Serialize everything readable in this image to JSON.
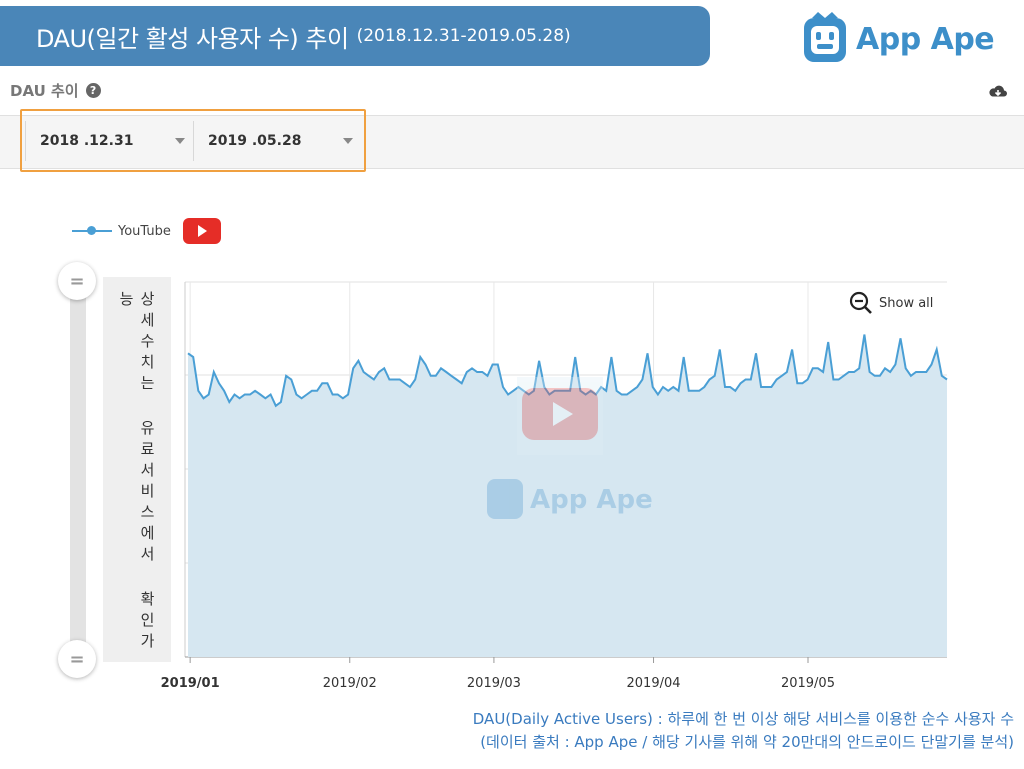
{
  "header": {
    "title": "DAU(일간 활성 사용자 수) 추이",
    "range": "(2018.12.31-2019.05.28)",
    "logo_text": "App Ape"
  },
  "section": {
    "title": "DAU 추이"
  },
  "date_range": {
    "start": "2018 .12.31",
    "end": "2019 .05.28"
  },
  "legend": {
    "series_name": "YouTube"
  },
  "side_panel": {
    "text": "상세수치는 유료서비스에서 확인가능"
  },
  "controls": {
    "show_all": "Show all"
  },
  "watermark": {
    "text": "App Ape"
  },
  "footnote": {
    "line1": "DAU(Daily Active Users) : 하루에 한 번 이상 해당 서비스를 이용한 순수 사용자 수",
    "line2": "(데이터 출처 : App Ape / 해당 기사를 위해 약 20만대의 안드로이드 단말기를 분석)"
  },
  "colors": {
    "banner": "#4a86b8",
    "line": "#4a9fd5",
    "area": "#d6e7f1",
    "highlight": "#f0a040",
    "youtube": "#e52d27"
  },
  "chart_data": {
    "type": "area",
    "x_ticks": [
      "2019/01",
      "2019/02",
      "2019/03",
      "2019/04",
      "2019/05"
    ],
    "x_start": "2018-12-31",
    "x_end": "2019-05-28",
    "y_values_hidden": true,
    "grid": true,
    "legend_position": "top-left",
    "series": [
      {
        "name": "YouTube",
        "values": [
          0.81,
          0.8,
          0.71,
          0.69,
          0.7,
          0.76,
          0.73,
          0.71,
          0.68,
          0.7,
          0.69,
          0.7,
          0.7,
          0.71,
          0.7,
          0.69,
          0.7,
          0.67,
          0.68,
          0.75,
          0.74,
          0.7,
          0.69,
          0.7,
          0.71,
          0.71,
          0.73,
          0.73,
          0.7,
          0.7,
          0.69,
          0.7,
          0.77,
          0.79,
          0.76,
          0.75,
          0.74,
          0.76,
          0.77,
          0.74,
          0.74,
          0.74,
          0.73,
          0.72,
          0.74,
          0.8,
          0.78,
          0.75,
          0.75,
          0.77,
          0.76,
          0.75,
          0.74,
          0.73,
          0.76,
          0.77,
          0.76,
          0.76,
          0.75,
          0.78,
          0.78,
          0.72,
          0.7,
          0.71,
          0.72,
          0.71,
          0.7,
          0.71,
          0.79,
          0.72,
          0.7,
          0.71,
          0.71,
          0.71,
          0.71,
          0.8,
          0.71,
          0.7,
          0.71,
          0.7,
          0.72,
          0.71,
          0.8,
          0.71,
          0.7,
          0.7,
          0.71,
          0.72,
          0.74,
          0.81,
          0.72,
          0.7,
          0.72,
          0.71,
          0.72,
          0.71,
          0.8,
          0.71,
          0.71,
          0.71,
          0.72,
          0.74,
          0.75,
          0.82,
          0.72,
          0.72,
          0.71,
          0.73,
          0.74,
          0.74,
          0.81,
          0.72,
          0.72,
          0.72,
          0.74,
          0.75,
          0.76,
          0.82,
          0.73,
          0.73,
          0.74,
          0.77,
          0.77,
          0.76,
          0.84,
          0.74,
          0.74,
          0.75,
          0.76,
          0.76,
          0.77,
          0.86,
          0.76,
          0.75,
          0.75,
          0.77,
          0.76,
          0.78,
          0.85,
          0.77,
          0.75,
          0.76,
          0.76,
          0.76,
          0.78,
          0.82,
          0.75,
          0.74
        ]
      }
    ]
  }
}
